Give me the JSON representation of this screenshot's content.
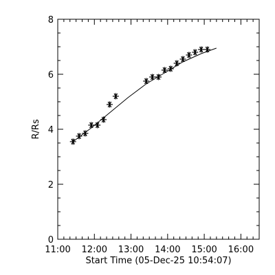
{
  "chart_data": {
    "type": "scatter",
    "xlabel": "Start Time (05-Dec-25 10:54:07)",
    "ylabel": "R/Rs",
    "x_unit": "time of day (hh:mm)",
    "xlim": [
      "11:00",
      "16:30"
    ],
    "ylim": [
      0,
      8
    ],
    "x_ticks": [
      "11:00",
      "12:00",
      "13:00",
      "14:00",
      "15:00",
      "16:00"
    ],
    "y_ticks": [
      "0",
      "2",
      "4",
      "6",
      "8"
    ],
    "grid": false,
    "marker": "asterisk",
    "series": [
      {
        "points": [
          {
            "x": "11:25",
            "y": 3.55
          },
          {
            "x": "11:35",
            "y": 3.75
          },
          {
            "x": "11:45",
            "y": 3.85
          },
          {
            "x": "11:55",
            "y": 4.15
          },
          {
            "x": "12:05",
            "y": 4.15
          },
          {
            "x": "12:15",
            "y": 4.35
          },
          {
            "x": "12:25",
            "y": 4.9
          },
          {
            "x": "12:35",
            "y": 5.2
          },
          {
            "x": "13:25",
            "y": 5.75
          },
          {
            "x": "13:35",
            "y": 5.9
          },
          {
            "x": "13:45",
            "y": 5.9
          },
          {
            "x": "13:55",
            "y": 6.15
          },
          {
            "x": "14:05",
            "y": 6.2
          },
          {
            "x": "14:15",
            "y": 6.4
          },
          {
            "x": "14:25",
            "y": 6.55
          },
          {
            "x": "14:35",
            "y": 6.7
          },
          {
            "x": "14:45",
            "y": 6.8
          },
          {
            "x": "14:55",
            "y": 6.9
          },
          {
            "x": "15:05",
            "y": 6.9
          }
        ],
        "fit": [
          {
            "x": "11:25",
            "y": 3.55
          },
          {
            "x": "11:55",
            "y": 4.05
          },
          {
            "x": "12:25",
            "y": 4.6
          },
          {
            "x": "12:55",
            "y": 5.15
          },
          {
            "x": "13:25",
            "y": 5.65
          },
          {
            "x": "13:55",
            "y": 6.05
          },
          {
            "x": "14:25",
            "y": 6.45
          },
          {
            "x": "14:55",
            "y": 6.75
          },
          {
            "x": "15:20",
            "y": 6.95
          }
        ]
      }
    ]
  }
}
